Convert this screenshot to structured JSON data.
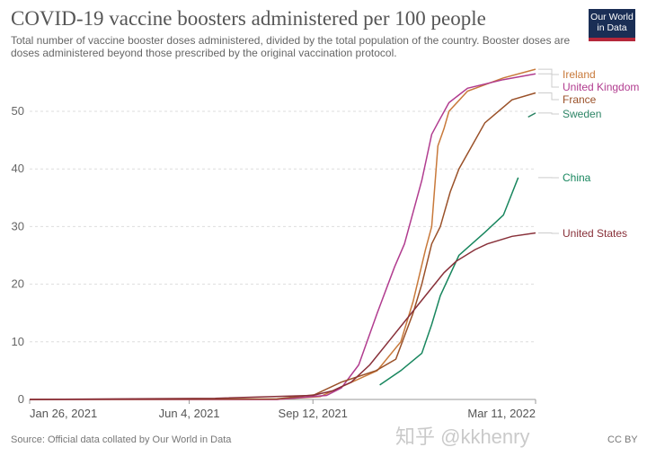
{
  "header": {
    "title": "COVID-19 vaccine boosters administered per 100 people",
    "subtitle": "Total number of vaccine booster doses administered, divided by the total population of the country. Booster doses are doses administered beyond those prescribed by the original vaccination protocol.",
    "logo": "Our World in Data"
  },
  "footer": {
    "source": "Source: Official data collated by Our World in Data",
    "license": "CC BY",
    "watermark": "知乎 @kkhenry"
  },
  "chart_data": {
    "type": "line",
    "title": "COVID-19 vaccine boosters administered per 100 people",
    "xlabel": "",
    "ylabel": "",
    "x_unit": "days since Jan 26, 2021",
    "xlim": [
      0,
      409
    ],
    "ylim": [
      0,
      57
    ],
    "yticks": [
      0,
      10,
      20,
      30,
      40,
      50
    ],
    "xticks": [
      {
        "day": 0,
        "label": "Jan 26, 2021"
      },
      {
        "day": 129,
        "label": "Jun 4, 2021"
      },
      {
        "day": 229,
        "label": "Sep 12, 2021"
      },
      {
        "day": 409,
        "label": "Mar 11, 2022"
      }
    ],
    "grid": true,
    "legend": "right (line-end labels)",
    "series": [
      {
        "name": "Ireland",
        "color": "#c8793a",
        "points": [
          [
            0,
            0
          ],
          [
            200,
            0
          ],
          [
            235,
            0.5
          ],
          [
            250,
            2
          ],
          [
            281,
            5
          ],
          [
            300,
            10
          ],
          [
            310,
            17
          ],
          [
            320,
            26
          ],
          [
            325,
            30
          ],
          [
            330,
            44
          ],
          [
            335,
            47
          ],
          [
            339,
            50
          ],
          [
            354,
            53.5
          ],
          [
            383,
            55.8
          ],
          [
            409,
            57.3
          ]
        ]
      },
      {
        "name": "United Kingdom",
        "color": "#b13c8f",
        "points": [
          [
            0,
            0
          ],
          [
            200,
            0
          ],
          [
            240,
            0.7
          ],
          [
            252,
            2
          ],
          [
            266,
            6
          ],
          [
            281,
            15
          ],
          [
            295,
            23
          ],
          [
            303,
            27
          ],
          [
            317,
            38
          ],
          [
            325,
            46
          ],
          [
            330,
            48
          ],
          [
            339,
            51.5
          ],
          [
            354,
            54
          ],
          [
            383,
            55.5
          ],
          [
            409,
            56.5
          ]
        ]
      },
      {
        "name": "France",
        "color": "#9a5129",
        "points": [
          [
            0,
            0
          ],
          [
            200,
            0.1
          ],
          [
            230,
            0.8
          ],
          [
            252,
            3
          ],
          [
            280,
            5
          ],
          [
            296,
            7
          ],
          [
            310,
            15
          ],
          [
            317,
            20
          ],
          [
            325,
            27
          ],
          [
            332,
            30
          ],
          [
            340,
            36
          ],
          [
            347,
            40
          ],
          [
            368,
            48
          ],
          [
            390,
            52
          ],
          [
            409,
            53.2
          ]
        ]
      },
      {
        "name": "Sweden",
        "color": "#2c8465",
        "points": [
          [
            403,
            49
          ],
          [
            409,
            49.7
          ]
        ]
      },
      {
        "name": "China",
        "color": "#18865e",
        "points": [
          [
            283,
            2.5
          ],
          [
            300,
            5
          ],
          [
            317,
            8
          ],
          [
            325,
            13
          ],
          [
            332,
            18
          ],
          [
            347,
            25
          ],
          [
            368,
            29
          ],
          [
            383,
            32
          ],
          [
            395,
            38.5
          ]
        ]
      },
      {
        "name": "United States",
        "color": "#883039",
        "points": [
          [
            0,
            0
          ],
          [
            150,
            0.2
          ],
          [
            229,
            0.7
          ],
          [
            245,
            1.5
          ],
          [
            260,
            3
          ],
          [
            275,
            6
          ],
          [
            290,
            10
          ],
          [
            305,
            14
          ],
          [
            320,
            18
          ],
          [
            335,
            22
          ],
          [
            345,
            24
          ],
          [
            360,
            26
          ],
          [
            370,
            27
          ],
          [
            390,
            28.3
          ],
          [
            409,
            28.9
          ]
        ]
      }
    ]
  }
}
